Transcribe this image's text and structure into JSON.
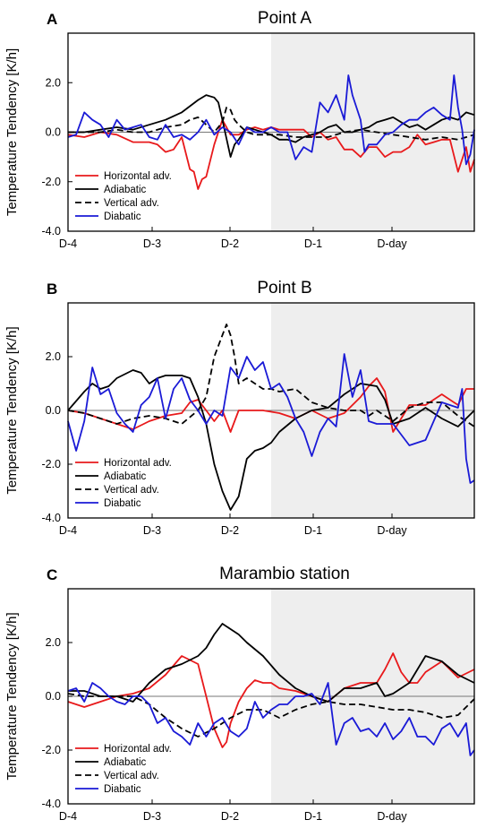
{
  "ytick_labels": [
    "2.0",
    "0.0",
    "-2.0",
    "-4.0"
  ],
  "xtick_labels": [
    "D-4",
    "D-3",
    "D-2",
    "D-1",
    "D-day"
  ],
  "series_style": {
    "Horizontal adv.": {
      "color": "#e8191b",
      "dash": "none"
    },
    "Adiabatic": {
      "color": "#000000",
      "dash": "none"
    },
    "Vertical adv.": {
      "color": "#000000",
      "dash": "7,4"
    },
    "Diabatic": {
      "color": "#1a1ad6",
      "dash": "none"
    }
  },
  "chart_data": [
    {
      "type": "line",
      "panel_label": "A",
      "title": "Point A",
      "ylabel": "Temperature Tendency [K/h]",
      "ylim": [
        -4.0,
        4.0
      ],
      "xlim": [
        -4.0,
        1.0
      ],
      "shaded_region": [
        -1.5,
        1.0
      ],
      "legend_position": "bottom-left",
      "series": [
        {
          "name": "Horizontal adv.",
          "x": [
            -4.0,
            -3.8,
            -3.6,
            -3.4,
            -3.2,
            -3.0,
            -2.9,
            -2.8,
            -2.7,
            -2.6,
            -2.5,
            -2.45,
            -2.4,
            -2.35,
            -2.3,
            -2.2,
            -2.1,
            -2.0,
            -1.9,
            -1.8,
            -1.7,
            -1.6,
            -1.5,
            -1.4,
            -1.3,
            -1.2,
            -1.1,
            -1.0,
            -0.9,
            -0.8,
            -0.7,
            -0.6,
            -0.5,
            -0.4,
            -0.3,
            -0.2,
            -0.1,
            0.0,
            0.1,
            0.2,
            0.3,
            0.4,
            0.5,
            0.6,
            0.7,
            0.8,
            0.9,
            0.95,
            1.0
          ],
          "y": [
            -0.1,
            -0.2,
            0.0,
            -0.1,
            -0.4,
            -0.4,
            -0.5,
            -0.8,
            -0.7,
            -0.2,
            -1.5,
            -1.6,
            -2.3,
            -1.9,
            -1.8,
            -0.5,
            0.5,
            -0.1,
            -0.1,
            0.1,
            0.2,
            0.1,
            0.2,
            0.1,
            0.1,
            0.1,
            0.1,
            -0.2,
            0.0,
            -0.3,
            -0.2,
            -0.7,
            -0.7,
            -1.0,
            -0.6,
            -0.6,
            -1.0,
            -0.8,
            -0.8,
            -0.6,
            -0.1,
            -0.5,
            -0.4,
            -0.3,
            -0.3,
            -1.6,
            -0.6,
            -1.6,
            -1.1
          ]
        },
        {
          "name": "Adiabatic",
          "x": [
            -4.0,
            -3.8,
            -3.6,
            -3.4,
            -3.2,
            -3.0,
            -2.8,
            -2.6,
            -2.4,
            -2.3,
            -2.2,
            -2.15,
            -2.1,
            -2.0,
            -1.95,
            -1.9,
            -1.8,
            -1.7,
            -1.6,
            -1.5,
            -1.4,
            -1.3,
            -1.2,
            -1.1,
            -1.0,
            -0.9,
            -0.8,
            -0.7,
            -0.6,
            -0.5,
            -0.4,
            -0.3,
            -0.2,
            -0.1,
            0.0,
            0.1,
            0.2,
            0.3,
            0.4,
            0.5,
            0.6,
            0.7,
            0.8,
            0.9,
            1.0
          ],
          "y": [
            0.0,
            0.0,
            0.1,
            0.2,
            0.1,
            0.3,
            0.5,
            0.8,
            1.3,
            1.5,
            1.4,
            1.2,
            0.5,
            -1.0,
            -0.5,
            -0.3,
            0.2,
            0.1,
            0.0,
            -0.1,
            -0.3,
            -0.3,
            -0.4,
            -0.2,
            -0.1,
            0.0,
            0.2,
            0.3,
            0.0,
            0.0,
            0.1,
            0.2,
            0.4,
            0.5,
            0.6,
            0.4,
            0.2,
            0.3,
            0.1,
            0.3,
            0.5,
            0.6,
            0.5,
            0.8,
            0.7
          ]
        },
        {
          "name": "Vertical adv.",
          "x": [
            -4.0,
            -3.8,
            -3.6,
            -3.4,
            -3.2,
            -3.0,
            -2.8,
            -2.6,
            -2.5,
            -2.4,
            -2.3,
            -2.2,
            -2.1,
            -2.05,
            -2.0,
            -1.95,
            -1.9,
            -1.8,
            -1.7,
            -1.6,
            -1.5,
            -1.4,
            -1.2,
            -1.0,
            -0.8,
            -0.6,
            -0.4,
            -0.2,
            0.0,
            0.2,
            0.4,
            0.6,
            0.8,
            1.0
          ],
          "y": [
            0.0,
            0.0,
            0.0,
            0.1,
            0.0,
            0.0,
            0.2,
            0.3,
            0.5,
            0.6,
            0.3,
            0.0,
            0.4,
            1.0,
            0.9,
            0.5,
            0.3,
            0.0,
            -0.1,
            -0.1,
            -0.1,
            -0.1,
            -0.2,
            -0.2,
            -0.2,
            0.0,
            0.1,
            0.0,
            -0.1,
            -0.2,
            -0.3,
            -0.2,
            -0.3,
            -0.1
          ]
        },
        {
          "name": "Diabatic",
          "x": [
            -4.0,
            -3.9,
            -3.8,
            -3.7,
            -3.6,
            -3.5,
            -3.4,
            -3.3,
            -3.2,
            -3.1,
            -3.0,
            -2.9,
            -2.8,
            -2.7,
            -2.6,
            -2.5,
            -2.4,
            -2.3,
            -2.2,
            -2.1,
            -2.0,
            -1.9,
            -1.8,
            -1.7,
            -1.6,
            -1.5,
            -1.4,
            -1.3,
            -1.2,
            -1.1,
            -1.0,
            -0.9,
            -0.8,
            -0.7,
            -0.6,
            -0.55,
            -0.5,
            -0.4,
            -0.35,
            -0.3,
            -0.2,
            -0.1,
            0.0,
            0.1,
            0.2,
            0.3,
            0.4,
            0.5,
            0.6,
            0.7,
            0.75,
            0.8,
            0.85,
            0.9,
            0.95,
            1.0
          ],
          "y": [
            -0.2,
            -0.1,
            0.8,
            0.5,
            0.3,
            -0.2,
            0.5,
            0.1,
            0.2,
            0.3,
            -0.2,
            -0.3,
            0.3,
            -0.2,
            -0.1,
            -0.3,
            0.0,
            0.5,
            -0.1,
            0.2,
            0.0,
            -0.5,
            0.2,
            0.0,
            0.0,
            0.2,
            0.0,
            0.0,
            -1.1,
            -0.6,
            -0.8,
            1.2,
            0.8,
            1.5,
            0.5,
            2.3,
            1.5,
            0.5,
            -0.8,
            -0.5,
            -0.5,
            -0.1,
            0.0,
            0.3,
            0.5,
            0.5,
            0.8,
            1.0,
            0.7,
            0.5,
            2.3,
            1.0,
            0.1,
            -1.3,
            -0.9,
            0.1
          ]
        }
      ]
    },
    {
      "type": "line",
      "panel_label": "B",
      "title": "Point B",
      "ylabel": "Temperature Tendency [K/h]",
      "ylim": [
        -4.0,
        4.0
      ],
      "xlim": [
        -4.0,
        1.0
      ],
      "shaded_region": [
        -1.5,
        1.0
      ],
      "legend_position": "bottom-left",
      "series": [
        {
          "name": "Horizontal adv.",
          "x": [
            -4.0,
            -3.8,
            -3.6,
            -3.4,
            -3.2,
            -3.0,
            -2.8,
            -2.6,
            -2.5,
            -2.4,
            -2.3,
            -2.2,
            -2.1,
            -2.0,
            -1.9,
            -1.8,
            -1.6,
            -1.4,
            -1.2,
            -1.0,
            -0.8,
            -0.6,
            -0.4,
            -0.3,
            -0.2,
            -0.1,
            0.0,
            0.2,
            0.4,
            0.6,
            0.8,
            0.9,
            1.0
          ],
          "y": [
            0.0,
            -0.1,
            -0.3,
            -0.5,
            -0.7,
            -0.4,
            -0.2,
            -0.1,
            0.3,
            0.4,
            0.0,
            -0.4,
            0.0,
            -0.8,
            0.0,
            0.0,
            0.0,
            -0.1,
            -0.3,
            0.0,
            -0.3,
            -0.1,
            0.5,
            0.9,
            1.2,
            0.7,
            -0.8,
            0.2,
            0.2,
            0.6,
            0.2,
            0.8,
            0.8
          ]
        },
        {
          "name": "Adiabatic",
          "x": [
            -4.0,
            -3.8,
            -3.7,
            -3.6,
            -3.5,
            -3.4,
            -3.2,
            -3.1,
            -3.0,
            -2.9,
            -2.8,
            -2.6,
            -2.5,
            -2.4,
            -2.3,
            -2.2,
            -2.1,
            -2.0,
            -1.9,
            -1.8,
            -1.7,
            -1.6,
            -1.5,
            -1.4,
            -1.2,
            -1.0,
            -0.8,
            -0.6,
            -0.4,
            -0.2,
            -0.1,
            0.0,
            0.2,
            0.4,
            0.6,
            0.8,
            1.0
          ],
          "y": [
            0.0,
            0.7,
            1.0,
            0.8,
            0.9,
            1.2,
            1.5,
            1.4,
            1.0,
            1.2,
            1.3,
            1.3,
            1.2,
            0.5,
            -0.5,
            -2.0,
            -3.0,
            -3.7,
            -3.2,
            -1.8,
            -1.5,
            -1.4,
            -1.2,
            -0.8,
            -0.3,
            0.0,
            0.1,
            0.6,
            1.0,
            0.9,
            0.4,
            -0.5,
            -0.3,
            0.1,
            -0.3,
            -0.6,
            0.0
          ]
        },
        {
          "name": "Vertical adv.",
          "x": [
            -4.0,
            -3.8,
            -3.6,
            -3.4,
            -3.2,
            -3.0,
            -2.8,
            -2.6,
            -2.4,
            -2.3,
            -2.2,
            -2.1,
            -2.05,
            -2.0,
            -1.95,
            -1.9,
            -1.8,
            -1.7,
            -1.6,
            -1.5,
            -1.4,
            -1.2,
            -1.0,
            -0.8,
            -0.6,
            -0.4,
            -0.3,
            -0.2,
            0.0,
            0.2,
            0.4,
            0.6,
            0.8,
            1.0
          ],
          "y": [
            0.0,
            -0.1,
            -0.3,
            -0.5,
            -0.3,
            -0.2,
            -0.3,
            -0.5,
            0.0,
            0.5,
            2.0,
            2.8,
            3.2,
            2.8,
            2.0,
            1.0,
            1.2,
            1.0,
            0.8,
            0.8,
            0.7,
            0.8,
            0.3,
            0.1,
            0.0,
            0.0,
            -0.2,
            0.0,
            -0.4,
            0.1,
            0.3,
            0.3,
            -0.2,
            -0.6
          ]
        },
        {
          "name": "Diabatic",
          "x": [
            -4.0,
            -3.9,
            -3.8,
            -3.7,
            -3.6,
            -3.5,
            -3.4,
            -3.3,
            -3.2,
            -3.1,
            -3.0,
            -2.9,
            -2.8,
            -2.7,
            -2.6,
            -2.5,
            -2.4,
            -2.3,
            -2.2,
            -2.1,
            -2.0,
            -1.9,
            -1.8,
            -1.7,
            -1.6,
            -1.5,
            -1.4,
            -1.3,
            -1.2,
            -1.1,
            -1.0,
            -0.9,
            -0.8,
            -0.7,
            -0.6,
            -0.5,
            -0.4,
            -0.3,
            -0.2,
            -0.1,
            0.0,
            0.2,
            0.4,
            0.6,
            0.8,
            0.85,
            0.9,
            0.95,
            1.0
          ],
          "y": [
            -0.4,
            -1.5,
            -0.4,
            1.6,
            0.6,
            0.8,
            -0.1,
            -0.5,
            -0.8,
            0.2,
            0.5,
            1.2,
            -0.3,
            0.8,
            1.2,
            0.4,
            0.0,
            -0.5,
            0.0,
            -0.2,
            1.6,
            1.2,
            2.0,
            1.5,
            1.8,
            0.8,
            1.0,
            0.5,
            -0.3,
            -0.8,
            -1.7,
            -0.8,
            -0.3,
            -0.6,
            2.1,
            0.5,
            1.5,
            -0.4,
            -0.5,
            -0.5,
            -0.5,
            -1.3,
            -1.1,
            0.3,
            0.1,
            0.8,
            -1.8,
            -2.7,
            -2.6
          ]
        }
      ]
    },
    {
      "type": "line",
      "panel_label": "C",
      "title": "Marambio station",
      "ylabel": "Temperature Tendency [K/h]",
      "ylim": [
        -4.0,
        4.0
      ],
      "xlim": [
        -4.0,
        1.0
      ],
      "shaded_region": [
        -1.5,
        1.0
      ],
      "legend_position": "bottom-left",
      "series": [
        {
          "name": "Horizontal adv.",
          "x": [
            -4.0,
            -3.8,
            -3.6,
            -3.4,
            -3.2,
            -3.0,
            -2.8,
            -2.6,
            -2.4,
            -2.3,
            -2.2,
            -2.1,
            -2.05,
            -2.0,
            -1.9,
            -1.8,
            -1.7,
            -1.6,
            -1.5,
            -1.4,
            -1.2,
            -1.0,
            -0.8,
            -0.6,
            -0.4,
            -0.2,
            -0.1,
            0.0,
            0.1,
            0.2,
            0.3,
            0.4,
            0.6,
            0.8,
            1.0
          ],
          "y": [
            -0.2,
            -0.4,
            -0.2,
            0.0,
            0.1,
            0.3,
            0.8,
            1.5,
            1.2,
            0.0,
            -1.2,
            -1.9,
            -1.7,
            -1.0,
            -0.2,
            0.3,
            0.6,
            0.5,
            0.5,
            0.3,
            0.2,
            0.0,
            -0.2,
            0.3,
            0.5,
            0.5,
            1.0,
            1.6,
            0.9,
            0.5,
            0.5,
            0.9,
            1.3,
            0.7,
            1.0
          ]
        },
        {
          "name": "Adiabatic",
          "x": [
            -4.0,
            -3.8,
            -3.6,
            -3.4,
            -3.2,
            -3.0,
            -2.8,
            -2.6,
            -2.4,
            -2.3,
            -2.2,
            -2.1,
            -2.0,
            -1.9,
            -1.8,
            -1.6,
            -1.4,
            -1.2,
            -1.0,
            -0.8,
            -0.6,
            -0.4,
            -0.2,
            -0.1,
            0.0,
            0.2,
            0.4,
            0.6,
            0.8,
            1.0
          ],
          "y": [
            0.2,
            0.2,
            0.0,
            0.0,
            -0.2,
            0.5,
            1.0,
            1.2,
            1.5,
            1.8,
            2.3,
            2.7,
            2.5,
            2.3,
            2.0,
            1.5,
            0.8,
            0.3,
            0.0,
            -0.2,
            0.3,
            0.3,
            0.5,
            0.0,
            0.1,
            0.5,
            1.5,
            1.3,
            0.8,
            0.5
          ]
        },
        {
          "name": "Vertical adv.",
          "x": [
            -4.0,
            -3.8,
            -3.6,
            -3.4,
            -3.2,
            -3.0,
            -2.8,
            -2.6,
            -2.4,
            -2.2,
            -2.0,
            -1.8,
            -1.6,
            -1.4,
            -1.2,
            -1.0,
            -0.8,
            -0.6,
            -0.4,
            -0.2,
            0.0,
            0.2,
            0.4,
            0.6,
            0.8,
            1.0
          ],
          "y": [
            0.1,
            0.0,
            0.0,
            0.0,
            0.0,
            -0.3,
            -0.8,
            -1.2,
            -1.5,
            -1.2,
            -0.8,
            -0.5,
            -0.5,
            -0.8,
            -0.5,
            -0.3,
            -0.2,
            -0.3,
            -0.3,
            -0.4,
            -0.5,
            -0.5,
            -0.6,
            -0.8,
            -0.7,
            -0.1
          ]
        },
        {
          "name": "Diabatic",
          "x": [
            -4.0,
            -3.9,
            -3.8,
            -3.7,
            -3.6,
            -3.5,
            -3.4,
            -3.3,
            -3.2,
            -3.1,
            -3.0,
            -2.9,
            -2.8,
            -2.7,
            -2.6,
            -2.5,
            -2.4,
            -2.3,
            -2.2,
            -2.1,
            -2.0,
            -1.9,
            -1.8,
            -1.7,
            -1.6,
            -1.5,
            -1.4,
            -1.3,
            -1.2,
            -1.1,
            -1.0,
            -0.9,
            -0.8,
            -0.7,
            -0.6,
            -0.5,
            -0.4,
            -0.3,
            -0.2,
            -0.1,
            0.0,
            0.1,
            0.2,
            0.3,
            0.4,
            0.5,
            0.6,
            0.7,
            0.8,
            0.9,
            0.95,
            1.0
          ],
          "y": [
            0.2,
            0.3,
            -0.2,
            0.5,
            0.3,
            0.0,
            -0.2,
            -0.3,
            0.0,
            0.0,
            -0.3,
            -1.0,
            -0.8,
            -1.3,
            -1.5,
            -1.8,
            -1.0,
            -1.5,
            -1.0,
            -0.8,
            -1.3,
            -1.5,
            -1.2,
            -0.2,
            -0.8,
            -0.5,
            -0.3,
            -0.3,
            0.0,
            0.0,
            0.1,
            -0.3,
            0.5,
            -1.8,
            -1.0,
            -0.8,
            -1.3,
            -1.2,
            -1.5,
            -1.0,
            -1.6,
            -1.3,
            -0.8,
            -1.5,
            -1.5,
            -1.8,
            -1.2,
            -1.0,
            -1.5,
            -1.0,
            -2.2,
            -2.0
          ]
        }
      ]
    }
  ]
}
